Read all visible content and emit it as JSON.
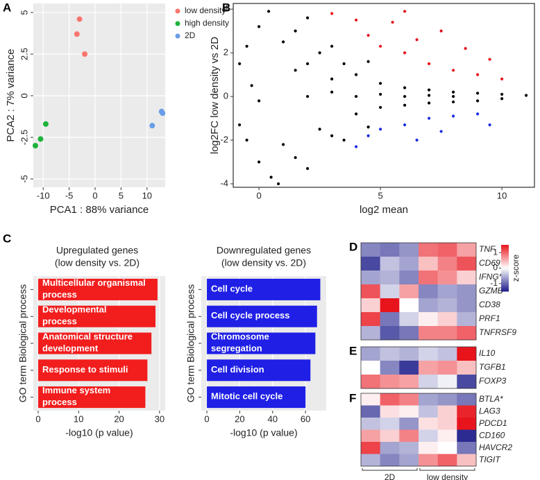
{
  "chart_data": [
    {
      "type": "scatter",
      "panel": "A",
      "x_label": "PCA1 : 88% variance",
      "y_label": "PCA2 : 7% variance",
      "xlim": [
        -11.9,
        13.5
      ],
      "ylim": [
        -5.5,
        5.54
      ],
      "xticks": [
        -10,
        -5,
        0,
        5,
        10
      ],
      "yticks": [
        -5,
        -2.5,
        0,
        2.5,
        5
      ],
      "grid": true,
      "background": "#ebebeb",
      "legend": "right",
      "series": [
        {
          "name": "low density",
          "color": "#f8766d",
          "x": [
            -3,
            -3.5,
            -2
          ],
          "y": [
            4.6,
            3.7,
            2.5
          ]
        },
        {
          "name": "high density",
          "color": "#1db33a",
          "x": [
            -9.5,
            -10.5,
            -11.5
          ],
          "y": [
            -1.7,
            -2.6,
            -3
          ]
        },
        {
          "name": "2D",
          "color": "#6a9de8",
          "x": [
            12.8,
            13,
            11
          ],
          "y": [
            -0.95,
            -1.05,
            -1.8
          ]
        }
      ]
    },
    {
      "type": "scatter",
      "panel": "B",
      "x_label": "log2 mean",
      "y_label": "log2FC low density vs 2D",
      "xlim": [
        -1.06,
        11.34
      ],
      "ylim": [
        -4.16,
        4.26
      ],
      "xticks": [
        0,
        5,
        10
      ],
      "yticks": [
        -4,
        -2,
        0,
        2,
        4
      ],
      "grid": false,
      "background": "#ffffff",
      "series": [
        {
          "color": "#000000",
          "x": [
            -0.8,
            -0.5,
            0,
            0.4,
            -0.3,
            0,
            -0.8,
            -0.5,
            0,
            0.5,
            0.8,
            1,
            1.5,
            2,
            1,
            1.5,
            2,
            1.5,
            2,
            2.5,
            3,
            2.5,
            3,
            3.5,
            3,
            4,
            4,
            5,
            5,
            6,
            6,
            7,
            7,
            8,
            8,
            9,
            9,
            10,
            10,
            11,
            2,
            3,
            4,
            5,
            6,
            7,
            8,
            3.5,
            4.5,
            4.5
          ],
          "y": [
            1.5,
            2.3,
            3.2,
            3.9,
            0.5,
            -0.2,
            -1.3,
            -2,
            -3,
            -3.7,
            -4,
            2.5,
            3,
            3.6,
            -2.2,
            -2.8,
            -3.3,
            1.2,
            1.5,
            2,
            2.3,
            -1.5,
            -1.8,
            -2,
            0.8,
            1,
            -0.8,
            0.6,
            -0.5,
            0.4,
            -0.4,
            0.3,
            -0.3,
            0.2,
            -0.25,
            0.15,
            -0.2,
            0.1,
            -0.1,
            0.05,
            0,
            0.2,
            0,
            0.1,
            0,
            0.05,
            0,
            1.5,
            1.6,
            -1.4
          ]
        },
        {
          "color": "#e8141c",
          "x": [
            3,
            4,
            4.5,
            5,
            5.5,
            6,
            6.5,
            7,
            7.5,
            8,
            8.5,
            9,
            9.5,
            10,
            6
          ],
          "y": [
            3.8,
            3.5,
            2.8,
            2.3,
            3.4,
            2,
            2.6,
            1.5,
            3,
            1.2,
            2.2,
            1,
            1.7,
            0.8,
            3.9
          ]
        },
        {
          "color": "#1c2ee0",
          "x": [
            4.5,
            5,
            6,
            6.5,
            7,
            7.5,
            8,
            9,
            9.5,
            4
          ],
          "y": [
            -1.8,
            -1.5,
            -1.3,
            -2,
            -1,
            -1.6,
            -0.9,
            -0.8,
            -1.3,
            -2.3
          ]
        }
      ]
    },
    {
      "type": "hbar",
      "panel": "C",
      "title": "Upregulated genes",
      "subtitle": "(low density vs. 2D)",
      "x_label": "-log10 (p value)",
      "y_label": "GO term Biological process",
      "color": "#f21d1d",
      "xlim": [
        -1.2,
        31.4
      ],
      "xticks": [
        0,
        10,
        20,
        30
      ],
      "grid": true,
      "background": "#ebebeb",
      "categories": [
        "Multicellular organismal process",
        "Developmental process",
        "Anatomical structure development",
        "Response to stimuli",
        "Immune system process"
      ],
      "values": [
        29.5,
        29,
        28,
        27,
        26.5
      ]
    },
    {
      "type": "hbar",
      "title": "Downregulated genes",
      "subtitle": "(low density vs. 2D)",
      "x_label": "-log10 (p value)",
      "y_label": "GO term Biological process",
      "color": "#1f1fe6",
      "xlim": [
        -3.4,
        72.6
      ],
      "xticks": [
        0,
        20,
        40,
        60
      ],
      "grid": true,
      "background": "#ebebeb",
      "categories": [
        "Cell cycle",
        "Cell cycle process",
        "Chromosome segregation",
        "Cell division",
        "Mitotic cell cycle"
      ],
      "values": [
        69,
        67,
        66,
        63,
        60
      ]
    },
    {
      "type": "heatmap",
      "panel": "D",
      "zlim": [
        -1.5,
        1.5
      ],
      "colors": [
        "#1c1c8a",
        "#ffffff",
        "#e8141c"
      ],
      "colorbar_label": "z-score",
      "colorbar_ticks": [
        1,
        0,
        -1
      ],
      "rows": [
        "TNF",
        "CD69*",
        "IFNG*",
        "GZMB",
        "CD38",
        "PRF1",
        "TNFRSF9"
      ],
      "values": [
        [
          -0.8,
          -0.9,
          -0.7,
          0.9,
          1.0,
          0.6
        ],
        [
          -1.2,
          -0.4,
          -0.6,
          0.4,
          0.8,
          1.1
        ],
        [
          -0.6,
          -0.5,
          -0.8,
          0.9,
          0.7,
          0.3
        ],
        [
          1.1,
          -0.3,
          0.6,
          -0.8,
          -0.6,
          -0.7
        ],
        [
          0.3,
          1.5,
          0.0,
          -0.6,
          -0.5,
          -0.7
        ],
        [
          1.2,
          -0.9,
          -0.3,
          0.1,
          0.3,
          -0.5
        ],
        [
          -0.5,
          -1.1,
          -0.9,
          0.8,
          0.8,
          1.0
        ]
      ]
    },
    {
      "type": "heatmap",
      "panel": "E",
      "zlim": [
        -1.5,
        1.5
      ],
      "colors": [
        "#1c1c8a",
        "#ffffff",
        "#e8141c"
      ],
      "rows": [
        "IL10",
        "TGFB1",
        "FOXP3"
      ],
      "values": [
        [
          -0.6,
          -0.4,
          -0.5,
          -0.3,
          -0.4,
          1.6
        ],
        [
          0.0,
          -0.8,
          -1.3,
          0.6,
          0.7,
          0.4
        ],
        [
          0.9,
          0.7,
          0.6,
          -0.3,
          -0.1,
          -1.2
        ]
      ]
    },
    {
      "type": "heatmap",
      "panel": "F",
      "zlim": [
        -1.5,
        1.5
      ],
      "colors": [
        "#1c1c8a",
        "#ffffff",
        "#e8141c"
      ],
      "rows": [
        "BTLA*",
        "LAG3",
        "PDCD1",
        "CD160",
        "HAVCR2",
        "TIGIT"
      ],
      "column_groups": [
        "2D",
        "low density"
      ],
      "values": [
        [
          0.1,
          1.0,
          0.8,
          -0.6,
          -0.7,
          -0.9
        ],
        [
          -1.0,
          0.2,
          0.1,
          -0.4,
          0.3,
          1.4
        ],
        [
          -0.4,
          -0.3,
          -0.7,
          0.2,
          0.3,
          1.6
        ],
        [
          0.6,
          0.3,
          0.8,
          -0.3,
          0.1,
          -1.4
        ],
        [
          1.2,
          -0.6,
          -0.5,
          0.1,
          0.0,
          -0.9
        ],
        [
          -0.5,
          -0.8,
          -0.6,
          0.7,
          1.0,
          0.4
        ]
      ]
    }
  ]
}
